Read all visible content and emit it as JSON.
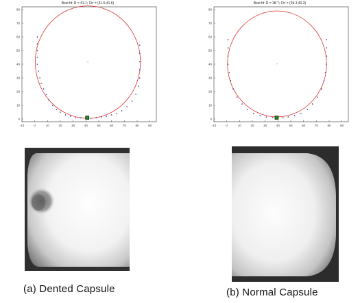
{
  "chart_data": [
    {
      "type": "scatter",
      "title": "Best fit: R = 41.1; Ctr = (41.5,41.6)",
      "xlim": [
        -10,
        95
      ],
      "ylim": [
        -2,
        82
      ],
      "x_ticks": [
        "-10",
        "0",
        "10",
        "20",
        "30",
        "40",
        "50",
        "60",
        "70",
        "80",
        "90"
      ],
      "y_ticks": [
        "0",
        "10",
        "20",
        "30",
        "40",
        "50",
        "60",
        "70",
        "80"
      ],
      "circle": {
        "cx": 41.5,
        "cy": 41.6,
        "r": 41.1
      },
      "center_marker": [
        41.5,
        41.6
      ],
      "edge_points": [
        [
          2,
          60
        ],
        [
          2,
          55
        ],
        [
          2,
          50
        ],
        [
          2,
          45
        ],
        [
          2,
          40
        ],
        [
          3,
          35
        ],
        [
          4,
          30
        ],
        [
          5,
          26
        ],
        [
          7,
          22
        ],
        [
          9,
          18
        ],
        [
          11,
          14
        ],
        [
          14,
          10
        ],
        [
          17,
          7
        ],
        [
          20,
          5
        ],
        [
          24,
          3
        ],
        [
          28,
          2
        ],
        [
          32,
          1
        ],
        [
          36,
          1
        ],
        [
          40,
          0.5
        ],
        [
          44,
          0.5
        ],
        [
          48,
          1
        ],
        [
          52,
          1.5
        ],
        [
          56,
          2
        ],
        [
          60,
          3
        ],
        [
          64,
          4
        ],
        [
          68,
          6
        ],
        [
          72,
          9
        ],
        [
          76,
          13
        ],
        [
          79,
          18
        ],
        [
          81,
          24
        ],
        [
          82,
          30
        ],
        [
          82,
          36
        ],
        [
          82,
          42
        ],
        [
          82,
          48
        ],
        [
          82,
          54
        ]
      ],
      "bottom_marker": [
        41,
        1
      ]
    },
    {
      "type": "scatter",
      "title": "Best fit: R = 38.7; Ctr = (39.3,40.3)",
      "xlim": [
        -10,
        95
      ],
      "ylim": [
        -2,
        82
      ],
      "x_ticks": [
        "-10",
        "0",
        "10",
        "20",
        "30",
        "40",
        "50",
        "60",
        "70",
        "80",
        "90"
      ],
      "y_ticks": [
        "0",
        "10",
        "20",
        "30",
        "40",
        "50",
        "60",
        "70",
        "80"
      ],
      "circle": {
        "cx": 39.3,
        "cy": 40.3,
        "r": 38.7
      },
      "center_marker": [
        39.3,
        40.3
      ],
      "edge_points": [
        [
          1,
          58
        ],
        [
          1,
          52
        ],
        [
          1,
          46
        ],
        [
          1,
          40
        ],
        [
          2,
          34
        ],
        [
          3,
          28
        ],
        [
          5,
          22
        ],
        [
          8,
          16
        ],
        [
          12,
          11
        ],
        [
          16,
          7
        ],
        [
          21,
          4
        ],
        [
          26,
          2.5
        ],
        [
          31,
          1.5
        ],
        [
          36,
          1
        ],
        [
          40,
          1
        ],
        [
          44,
          1
        ],
        [
          48,
          1.5
        ],
        [
          53,
          2.5
        ],
        [
          58,
          4
        ],
        [
          63,
          7
        ],
        [
          67,
          11
        ],
        [
          71,
          16
        ],
        [
          74,
          22
        ],
        [
          76,
          28
        ],
        [
          77,
          34
        ],
        [
          78,
          40
        ],
        [
          78,
          46
        ],
        [
          78,
          52
        ],
        [
          78,
          58
        ]
      ],
      "bottom_marker": [
        39,
        1
      ]
    }
  ],
  "captions": {
    "a": "(a) Dented Capsule",
    "b": "(b) Normal Capsule"
  },
  "colors": {
    "circle": "#e03030",
    "points": "#1a1a8c",
    "marker": "#1a8c1a",
    "axes": "#333333"
  }
}
